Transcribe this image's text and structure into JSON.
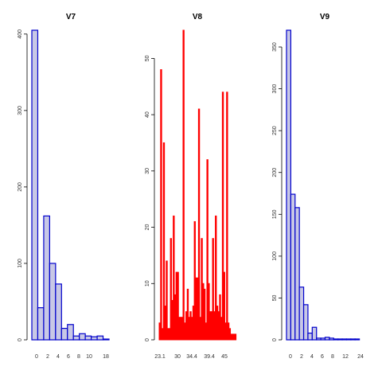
{
  "chart_data": [
    {
      "type": "bar",
      "title": "V7",
      "xlabel": "",
      "ylabel": "",
      "bar_fill": "#c8c8e6",
      "bar_stroke": "#0000cc",
      "x": [
        0,
        1,
        2,
        3,
        4,
        5,
        6,
        7,
        8,
        9,
        10,
        11,
        12
      ],
      "values": [
        405,
        42,
        162,
        100,
        73,
        15,
        20,
        5,
        8,
        5,
        4,
        5,
        1
      ],
      "xticks": [
        0,
        2,
        4,
        6,
        8,
        10,
        18
      ],
      "yticks": [
        0,
        100,
        200,
        300,
        400
      ],
      "ylim": [
        0,
        405
      ]
    },
    {
      "type": "bar",
      "title": "V8",
      "xlabel": "",
      "ylabel": "",
      "bar_fill": "#ff0000",
      "x": [
        23.1,
        23.6,
        24.1,
        24.6,
        25.1,
        25.6,
        26.1,
        26.6,
        27.1,
        27.6,
        28.1,
        28.6,
        29.1,
        29.6,
        30.1,
        30.6,
        31.1,
        31.6,
        32.1,
        32.6,
        33.1,
        33.6,
        34.1,
        34.4,
        34.9,
        35.4,
        35.9,
        36.4,
        36.9,
        37.4,
        37.9,
        38.4,
        38.9,
        39.4,
        39.9,
        40.4,
        40.9,
        41.4,
        41.9,
        42.4,
        42.9,
        43.4,
        43.9,
        44.4,
        44.9,
        45.4,
        45.9,
        46.4,
        46.9,
        47.4,
        47.9,
        48.4,
        48.9,
        49.4,
        49.9
      ],
      "values": [
        3,
        48,
        2,
        35,
        6,
        14,
        2,
        2,
        18,
        7,
        22,
        8,
        12,
        12,
        4,
        4,
        4,
        55,
        3,
        5,
        9,
        4,
        5,
        4,
        6,
        21,
        11,
        11,
        41,
        4,
        18,
        10,
        9,
        3,
        32,
        10,
        5,
        5,
        18,
        5,
        22,
        6,
        5,
        8,
        4,
        44,
        12,
        3,
        44,
        3,
        2,
        1,
        1,
        1,
        1
      ],
      "xticks": [
        23.1,
        30,
        34.4,
        39.4,
        45
      ],
      "yticks": [
        0,
        10,
        20,
        30,
        40,
        50
      ],
      "ylim": [
        0,
        55
      ]
    },
    {
      "type": "bar",
      "title": "V9",
      "xlabel": "",
      "ylabel": "",
      "bar_fill": "#c8c8e6",
      "bar_stroke": "#0000cc",
      "x": [
        0,
        1,
        2,
        3,
        4,
        5,
        6,
        7,
        8,
        9,
        10,
        11,
        12,
        13,
        14,
        15,
        16,
        17
      ],
      "values": [
        370,
        174,
        158,
        63,
        42,
        8,
        15,
        2,
        2,
        3,
        2,
        1,
        1,
        1,
        1,
        1,
        1,
        0
      ],
      "xticks": [
        0,
        2,
        4,
        6,
        8,
        12,
        24
      ],
      "yticks": [
        0,
        50,
        100,
        150,
        200,
        250,
        300,
        350
      ],
      "ylim": [
        0,
        370
      ]
    }
  ]
}
